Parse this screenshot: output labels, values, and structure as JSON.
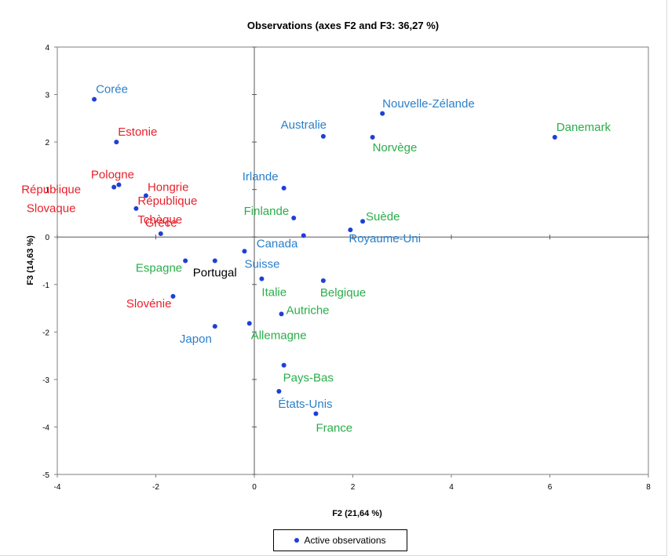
{
  "chart_data": {
    "type": "scatter",
    "title": "Observations (axes F2 and F3: 36,27 %)",
    "xlabel": "F2 (21,64 %)",
    "ylabel": "F3 (14,63 %)",
    "xlim": [
      -4,
      8
    ],
    "ylim": [
      -5,
      4
    ],
    "xticks": [
      -4,
      -2,
      0,
      2,
      4,
      6,
      8
    ],
    "yticks": [
      -5,
      -4,
      -3,
      -2,
      -1,
      0,
      1,
      2,
      3,
      4
    ],
    "legend": "Active observations",
    "marker_color": "#1f3fd6",
    "label_colors": {
      "blue": "#2a7fc9",
      "red": "#e8202a",
      "green": "#2aae4a",
      "black": "#000000"
    },
    "points": [
      {
        "name": "Corée",
        "x": -3.25,
        "y": 2.9,
        "color": "blue"
      },
      {
        "name": "Estonie",
        "x": -2.8,
        "y": 2.0,
        "color": "red"
      },
      {
        "name": "Pologne",
        "x": -2.75,
        "y": 1.1,
        "color": "red"
      },
      {
        "name": "République Slovaque",
        "x": -2.85,
        "y": 1.05,
        "color": "red"
      },
      {
        "name": "Hongrie",
        "x": -2.2,
        "y": 0.87,
        "color": "red"
      },
      {
        "name": "République Tchèque",
        "x": -2.4,
        "y": 0.6,
        "color": "red"
      },
      {
        "name": "Grèce",
        "x": -1.9,
        "y": 0.07,
        "color": "red"
      },
      {
        "name": "Espagne",
        "x": -1.4,
        "y": -0.5,
        "color": "green"
      },
      {
        "name": "Portugal",
        "x": -0.8,
        "y": -0.5,
        "color": "black"
      },
      {
        "name": "Slovénie",
        "x": -1.65,
        "y": -1.25,
        "color": "red"
      },
      {
        "name": "Japon",
        "x": -0.8,
        "y": -1.88,
        "color": "blue"
      },
      {
        "name": "Allemagne",
        "x": -0.1,
        "y": -1.82,
        "color": "green"
      },
      {
        "name": "Suisse",
        "x": -0.2,
        "y": -0.3,
        "color": "blue"
      },
      {
        "name": "Canada",
        "x": 1.0,
        "y": 0.03,
        "color": "blue"
      },
      {
        "name": "Italie",
        "x": 0.15,
        "y": -0.88,
        "color": "green"
      },
      {
        "name": "Irlande",
        "x": 0.6,
        "y": 1.03,
        "color": "blue"
      },
      {
        "name": "Finlande",
        "x": 0.8,
        "y": 0.4,
        "color": "green"
      },
      {
        "name": "Australie",
        "x": 1.4,
        "y": 2.12,
        "color": "blue"
      },
      {
        "name": "Belgique",
        "x": 1.4,
        "y": -0.92,
        "color": "green"
      },
      {
        "name": "Autriche",
        "x": 0.55,
        "y": -1.62,
        "color": "green"
      },
      {
        "name": "Suède",
        "x": 2.2,
        "y": 0.33,
        "color": "green"
      },
      {
        "name": "Royaume-Uni",
        "x": 1.95,
        "y": 0.15,
        "color": "blue"
      },
      {
        "name": "Nouvelle-Zélande",
        "x": 2.6,
        "y": 2.6,
        "color": "blue"
      },
      {
        "name": "Norvège",
        "x": 2.4,
        "y": 2.1,
        "color": "green"
      },
      {
        "name": "Danemark",
        "x": 6.1,
        "y": 2.1,
        "color": "green"
      },
      {
        "name": "Pays-Bas",
        "x": 0.6,
        "y": -2.7,
        "color": "green"
      },
      {
        "name": "États-Unis",
        "x": 0.5,
        "y": -3.25,
        "color": "blue"
      },
      {
        "name": "France",
        "x": 1.25,
        "y": -3.72,
        "color": "green"
      }
    ]
  }
}
